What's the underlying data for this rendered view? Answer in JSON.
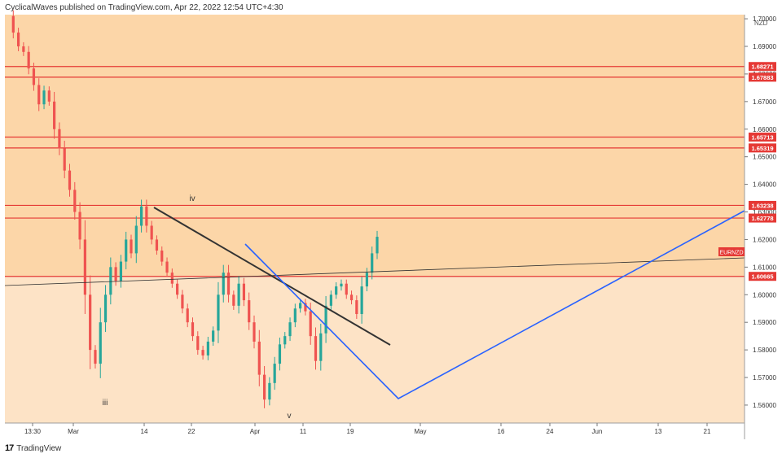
{
  "header": {
    "text": "CyclicalWaves published on TradingView.com, Apr 22, 2022 12:54 UTC+4:30"
  },
  "footer": {
    "logo_glyph": "17",
    "brand": "TradingView"
  },
  "colors": {
    "upper_zone": "#fcd6a8",
    "lower_zone": "#fde3c6",
    "candle_up": "#26a69a",
    "candle_down": "#ef5350",
    "level_line": "#e53935",
    "trend_line": "#333333",
    "projection_line": "#2962ff",
    "symbol_badge": "#e53935"
  },
  "chart_data": {
    "type": "candlestick",
    "symbol": "EURNZD",
    "currency": "NZD",
    "ylim": [
      1.5535,
      1.7015
    ],
    "y_ticks": [
      "1.56000",
      "1.57000",
      "1.58000",
      "1.59000",
      "1.60000",
      "1.61000",
      "1.62000",
      "1.63000",
      "1.64000",
      "1.65000",
      "1.66000",
      "1.67000",
      "1.68000",
      "1.69000",
      "1.70000"
    ],
    "x_ticks": [
      "13:30",
      "Mar",
      "14",
      "22",
      "Apr",
      "11",
      "19",
      "May",
      "16",
      "24",
      "Jun",
      "13",
      "21"
    ],
    "price_levels": [
      "1.68271",
      "1.67883",
      "1.65713",
      "1.65319",
      "1.63238",
      "1.62778",
      "1.60665"
    ],
    "current_price_label": "EURNZD",
    "wave_labels": [
      "iii",
      "iv",
      "v"
    ],
    "close_path": [
      1.701,
      1.695,
      1.69,
      1.688,
      1.682,
      1.676,
      1.669,
      1.674,
      1.67,
      1.66,
      1.653,
      1.645,
      1.638,
      1.63,
      1.62,
      1.6,
      1.58,
      1.575,
      1.59,
      1.6,
      1.61,
      1.605,
      1.612,
      1.62,
      1.615,
      1.625,
      1.632,
      1.625,
      1.62,
      1.616,
      1.612,
      1.608,
      1.604,
      1.6,
      1.595,
      1.59,
      1.585,
      1.58,
      1.578,
      1.583,
      1.587,
      1.6,
      1.608,
      1.6,
      1.596,
      1.604,
      1.598,
      1.59,
      1.583,
      1.571,
      1.562,
      1.568,
      1.575,
      1.582,
      1.585,
      1.59,
      1.595,
      1.597,
      1.594,
      1.585,
      1.576,
      1.586,
      1.596,
      1.6,
      1.603,
      1.604,
      1.6,
      1.598,
      1.593,
      1.603,
      1.608,
      1.615,
      1.621
    ]
  }
}
